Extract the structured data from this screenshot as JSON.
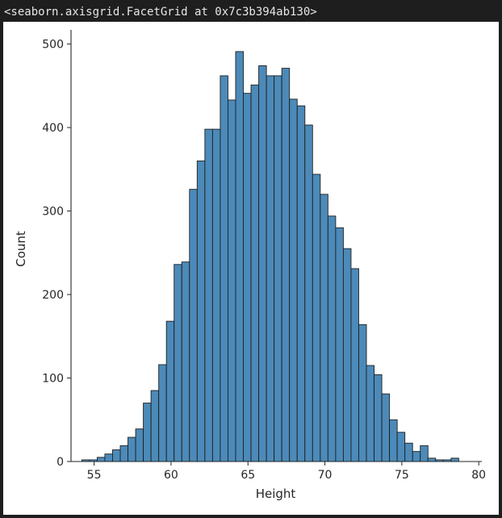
{
  "output": {
    "repr_text": "<seaborn.axisgrid.FacetGrid at 0x7c3b394ab130>"
  },
  "chart_data": {
    "type": "bar",
    "xlabel": "Height",
    "ylabel": "Count",
    "xlim": [
      53.5,
      80.2
    ],
    "ylim": [
      0,
      517
    ],
    "x_ticks": [
      55,
      60,
      65,
      70,
      75,
      80
    ],
    "y_ticks": [
      0,
      100,
      200,
      300,
      400,
      500
    ],
    "grid": false,
    "bar_color": "#4c8ab9",
    "edge_color": "#1f1f1f",
    "bins": {
      "start": 54.2,
      "width": 0.5
    },
    "values": [
      2,
      2,
      5,
      9,
      14,
      19,
      29,
      39,
      70,
      85,
      116,
      168,
      236,
      239,
      326,
      360,
      398,
      398,
      462,
      433,
      491,
      441,
      451,
      474,
      462,
      462,
      471,
      434,
      426,
      403,
      344,
      320,
      294,
      280,
      255,
      231,
      164,
      115,
      104,
      81,
      50,
      35,
      22,
      12,
      19,
      4,
      2,
      2,
      4
    ]
  }
}
